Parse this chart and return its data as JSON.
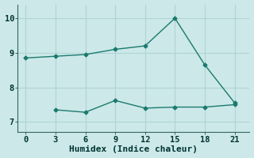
{
  "xlabel": "Humidex (Indice chaleur)",
  "bg_color": "#cce8e8",
  "grid_color": "#b0d4d4",
  "line_color": "#1a7a6e",
  "line1_x": [
    0,
    3,
    6,
    9,
    12,
    15,
    18,
    21
  ],
  "line1_y": [
    8.85,
    8.9,
    8.95,
    9.1,
    9.2,
    10.0,
    8.65,
    7.55
  ],
  "line2_x": [
    3,
    6,
    9,
    12,
    15,
    18,
    21
  ],
  "line2_y": [
    7.35,
    7.28,
    7.62,
    7.4,
    7.43,
    7.43,
    7.5
  ],
  "xlim": [
    -0.8,
    22.5
  ],
  "ylim": [
    6.7,
    10.4
  ],
  "xticks": [
    0,
    3,
    6,
    9,
    12,
    15,
    18,
    21
  ],
  "yticks": [
    7,
    8,
    9,
    10
  ],
  "tick_fontsize": 7.5,
  "xlabel_fontsize": 8
}
